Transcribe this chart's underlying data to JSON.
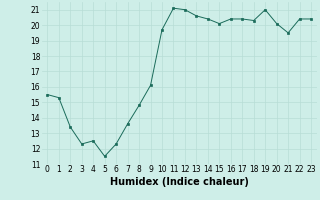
{
  "x": [
    0,
    1,
    2,
    3,
    4,
    5,
    6,
    7,
    8,
    9,
    10,
    11,
    12,
    13,
    14,
    15,
    16,
    17,
    18,
    19,
    20,
    21,
    22,
    23
  ],
  "y": [
    15.5,
    15.3,
    13.4,
    12.3,
    12.5,
    11.5,
    12.3,
    13.6,
    14.8,
    16.1,
    19.7,
    21.1,
    21.0,
    20.6,
    20.4,
    20.1,
    20.4,
    20.4,
    20.3,
    21.0,
    20.1,
    19.5,
    20.4,
    20.4
  ],
  "xlabel": "Humidex (Indice chaleur)",
  "ylim": [
    11,
    21.5
  ],
  "xlim": [
    -0.5,
    23.5
  ],
  "yticks": [
    11,
    12,
    13,
    14,
    15,
    16,
    17,
    18,
    19,
    20,
    21
  ],
  "xticks": [
    0,
    1,
    2,
    3,
    4,
    5,
    6,
    7,
    8,
    9,
    10,
    11,
    12,
    13,
    14,
    15,
    16,
    17,
    18,
    19,
    20,
    21,
    22,
    23
  ],
  "line_color": "#1a6b5a",
  "marker_color": "#1a6b5a",
  "bg_color": "#ceeee8",
  "grid_color": "#b8ddd6",
  "tick_fontsize": 5.5,
  "xlabel_fontsize": 7
}
